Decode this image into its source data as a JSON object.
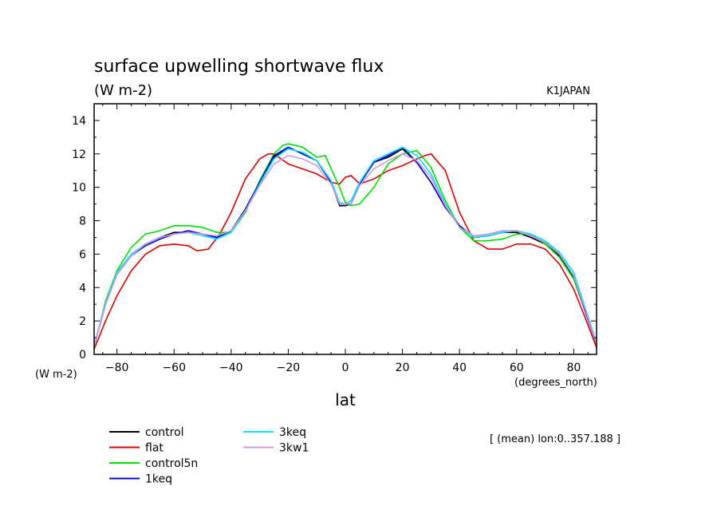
{
  "chart_data": {
    "type": "line",
    "title": "surface upwelling shortwave flux",
    "subtitle": "(W m-2)",
    "source_label": "K1JAPAN",
    "xlabel": "lat",
    "x_unit_label": "(degrees_north)",
    "y_unit_label": "(W m-2)",
    "range_note": "[ (mean) lon:0..357.188 ]",
    "xlim": [
      -88,
      88
    ],
    "ylim": [
      0,
      15
    ],
    "x_ticks": [
      -80,
      -60,
      -40,
      -20,
      0,
      20,
      40,
      60,
      80
    ],
    "y_ticks": [
      0,
      2,
      4,
      6,
      8,
      10,
      12,
      14
    ],
    "x_tick_labels": [
      "−80",
      "−60",
      "−40",
      "−20",
      "0",
      "20",
      "40",
      "60",
      "80"
    ],
    "y_tick_labels": [
      "0",
      "2",
      "4",
      "6",
      "8",
      "10",
      "12",
      "14"
    ],
    "grid": false,
    "legend_position": "bottom-left",
    "series": [
      {
        "name": "control",
        "color": "#000000",
        "x": [
          -88,
          -84,
          -80,
          -75,
          -70,
          -65,
          -60,
          -55,
          -50,
          -45,
          -40,
          -35,
          -30,
          -25,
          -20,
          -15,
          -10,
          -5,
          -2,
          0,
          2,
          5,
          10,
          15,
          20,
          25,
          30,
          35,
          40,
          45,
          50,
          55,
          60,
          65,
          70,
          75,
          80,
          84,
          88
        ],
        "y": [
          0.5,
          3.0,
          4.8,
          5.9,
          6.6,
          7.0,
          7.3,
          7.3,
          7.2,
          7.0,
          7.4,
          8.7,
          10.3,
          11.8,
          12.4,
          12.0,
          11.6,
          10.3,
          8.9,
          8.9,
          9.0,
          10.2,
          11.5,
          11.8,
          12.3,
          11.5,
          10.3,
          8.8,
          7.7,
          7.0,
          7.1,
          7.3,
          7.3,
          7.0,
          6.6,
          5.9,
          4.6,
          2.6,
          0.6
        ]
      },
      {
        "name": "flat",
        "color": "#dd0000",
        "x": [
          -88,
          -84,
          -80,
          -75,
          -70,
          -65,
          -60,
          -55,
          -52,
          -48,
          -44,
          -40,
          -35,
          -30,
          -27,
          -25,
          -20,
          -15,
          -10,
          -5,
          -2,
          0,
          2,
          5,
          10,
          15,
          20,
          25,
          28,
          30,
          35,
          40,
          45,
          50,
          55,
          60,
          65,
          70,
          75,
          80,
          84,
          88
        ],
        "y": [
          0.3,
          2.0,
          3.5,
          5.0,
          6.0,
          6.5,
          6.6,
          6.5,
          6.2,
          6.3,
          7.2,
          8.5,
          10.5,
          11.7,
          12.0,
          12.0,
          11.4,
          11.1,
          10.8,
          10.3,
          10.2,
          10.6,
          10.7,
          10.2,
          10.5,
          11.0,
          11.3,
          11.7,
          11.9,
          12.0,
          11.0,
          8.5,
          6.8,
          6.3,
          6.3,
          6.6,
          6.6,
          6.3,
          5.4,
          3.9,
          2.2,
          0.4
        ]
      },
      {
        "name": "control5n",
        "color": "#00dd00",
        "x": [
          -88,
          -84,
          -80,
          -75,
          -70,
          -65,
          -60,
          -55,
          -50,
          -45,
          -40,
          -35,
          -30,
          -25,
          -22,
          -20,
          -15,
          -10,
          -7,
          -5,
          -2,
          0,
          2,
          5,
          10,
          15,
          20,
          25,
          30,
          35,
          40,
          45,
          50,
          55,
          60,
          65,
          70,
          75,
          80,
          84,
          88
        ],
        "y": [
          0.4,
          3.2,
          5.0,
          6.4,
          7.2,
          7.4,
          7.7,
          7.7,
          7.6,
          7.3,
          7.3,
          8.5,
          10.4,
          12.0,
          12.5,
          12.6,
          12.4,
          11.8,
          11.9,
          11.1,
          10.0,
          9.1,
          8.9,
          9.0,
          10.0,
          11.4,
          12.0,
          12.2,
          11.2,
          9.2,
          7.6,
          6.8,
          6.8,
          6.9,
          7.2,
          7.2,
          6.6,
          5.8,
          4.5,
          2.6,
          0.6
        ]
      },
      {
        "name": "1keq",
        "color": "#0000dd",
        "x": [
          -88,
          -84,
          -80,
          -75,
          -70,
          -65,
          -60,
          -55,
          -50,
          -45,
          -40,
          -35,
          -30,
          -25,
          -20,
          -15,
          -10,
          -5,
          -2,
          0,
          2,
          5,
          10,
          15,
          20,
          25,
          30,
          35,
          40,
          45,
          50,
          55,
          60,
          65,
          70,
          75,
          80,
          84,
          88
        ],
        "y": [
          0.5,
          3.0,
          4.8,
          5.9,
          6.5,
          6.9,
          7.2,
          7.4,
          7.2,
          7.0,
          7.4,
          8.7,
          10.3,
          11.9,
          12.4,
          12.0,
          11.6,
          10.3,
          9.0,
          9.0,
          9.0,
          10.2,
          11.5,
          11.9,
          12.4,
          11.5,
          10.3,
          8.8,
          7.7,
          7.0,
          7.1,
          7.3,
          7.4,
          7.1,
          6.7,
          6.0,
          4.7,
          2.6,
          0.6
        ]
      },
      {
        "name": "3keq",
        "color": "#00e5ff",
        "x": [
          -88,
          -84,
          -80,
          -75,
          -70,
          -65,
          -60,
          -55,
          -50,
          -45,
          -40,
          -35,
          -30,
          -25,
          -20,
          -15,
          -10,
          -5,
          -2,
          0,
          2,
          5,
          10,
          15,
          20,
          25,
          30,
          35,
          40,
          45,
          50,
          55,
          60,
          65,
          70,
          75,
          80,
          84,
          88
        ],
        "y": [
          0.5,
          3.1,
          4.9,
          6.0,
          6.6,
          7.0,
          7.2,
          7.3,
          7.1,
          6.9,
          7.3,
          8.6,
          10.2,
          11.7,
          12.3,
          12.1,
          11.6,
          10.4,
          9.1,
          9.0,
          9.2,
          10.3,
          11.6,
          12.0,
          12.4,
          11.9,
          10.8,
          9.0,
          7.6,
          7.0,
          7.1,
          7.3,
          7.4,
          7.2,
          6.8,
          6.1,
          4.9,
          2.8,
          0.7
        ]
      },
      {
        "name": "3kw1",
        "color": "#cc99dd",
        "x": [
          -88,
          -84,
          -80,
          -75,
          -70,
          -65,
          -60,
          -55,
          -50,
          -45,
          -40,
          -35,
          -30,
          -25,
          -20,
          -15,
          -10,
          -5,
          -2,
          0,
          2,
          5,
          10,
          15,
          20,
          25,
          30,
          35,
          40,
          45,
          50,
          55,
          60,
          65,
          70,
          75,
          80,
          84,
          88
        ],
        "y": [
          0.5,
          3.0,
          4.8,
          5.9,
          6.6,
          7.0,
          7.2,
          7.3,
          7.2,
          7.1,
          7.4,
          8.6,
          10.1,
          11.4,
          11.9,
          11.7,
          11.3,
          10.2,
          9.0,
          9.0,
          9.0,
          10.1,
          11.1,
          11.6,
          12.0,
          11.6,
          10.6,
          8.9,
          7.6,
          7.1,
          7.2,
          7.4,
          7.4,
          7.1,
          6.7,
          6.0,
          4.7,
          2.7,
          0.6
        ]
      }
    ]
  }
}
